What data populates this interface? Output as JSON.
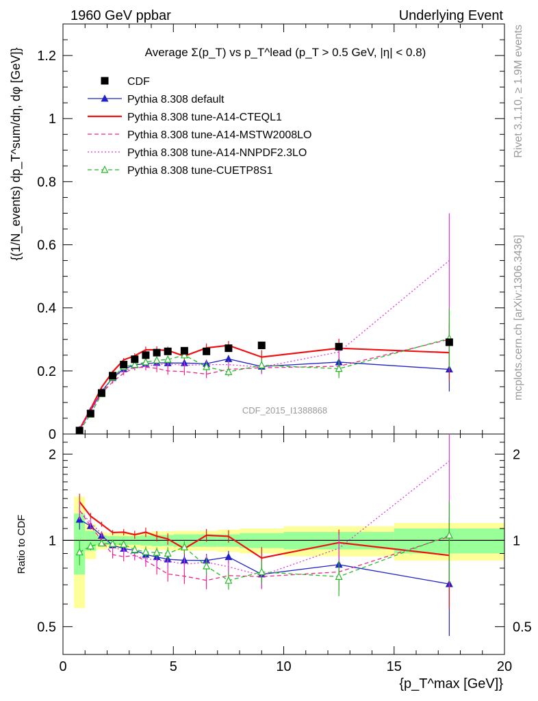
{
  "header": {
    "left": "1960 GeV ppbar",
    "right": "Underlying Event"
  },
  "side_labels": {
    "rivet": "Rivet 3.1.10, ≥ 1.9M events",
    "mcplots": "mcplots.cern.ch [arXiv:1306.3436]"
  },
  "chart_data": {
    "type": "line",
    "title": "Average Σ(p_T) vs p_T^lead (p_T > 0.5 GeV, |η| < 0.8)",
    "watermark": "CDF_2015_I1388868",
    "xlabel": "{p_T^max [GeV]}",
    "ylabel": "{(1/N_events) dp_T^sum/dη, dφ [GeV]}",
    "ratio_ylabel": "Ratio to CDF",
    "xlim": [
      0,
      20
    ],
    "ylim": [
      0,
      1.3
    ],
    "ratio_ylim": [
      0.4,
      2.35
    ],
    "ratio_scale": "log",
    "x_ticks": [
      0,
      5,
      10,
      15,
      20
    ],
    "y_ticks": [
      0,
      0.2,
      0.4,
      0.6,
      0.8,
      1,
      1.2
    ],
    "y_tick_labels": [
      "0",
      "0.2",
      "0.4",
      "0.6",
      "0.8",
      "1",
      "1.2"
    ],
    "ratio_ticks": [
      0.5,
      1,
      2
    ],
    "ratio_tick_labels": [
      "0.5",
      "1",
      "2"
    ],
    "legend_position": "top-left",
    "x_bin_edges": [
      0.5,
      1,
      1.5,
      2,
      2.5,
      3,
      3.5,
      4,
      4.5,
      5,
      6,
      7,
      8,
      10,
      15,
      20
    ],
    "x": [
      0.75,
      1.25,
      1.75,
      2.25,
      2.75,
      3.25,
      3.75,
      4.25,
      4.75,
      5.5,
      6.5,
      7.5,
      9,
      12.5,
      17.5
    ],
    "data": {
      "name": "CDF",
      "color": "#000000",
      "values": [
        0.011,
        0.065,
        0.13,
        0.185,
        0.22,
        0.237,
        0.25,
        0.258,
        0.262,
        0.264,
        0.262,
        0.272,
        0.281,
        0.277,
        0.291
      ],
      "band_yellow": [
        0.42,
        0.14,
        0.07,
        0.06,
        0.06,
        0.06,
        0.07,
        0.075,
        0.075,
        0.08,
        0.08,
        0.09,
        0.1,
        0.12,
        0.15
      ],
      "band_green": [
        0.24,
        0.08,
        0.04,
        0.035,
        0.035,
        0.035,
        0.04,
        0.045,
        0.045,
        0.05,
        0.05,
        0.05,
        0.06,
        0.07,
        0.1
      ]
    },
    "series": [
      {
        "name": "Pythia 8.308 default",
        "color": "#1f22c8",
        "style": "solid",
        "marker": "triangle",
        "values": [
          0.013,
          0.073,
          0.135,
          0.178,
          0.206,
          0.219,
          0.223,
          0.226,
          0.225,
          0.225,
          0.223,
          0.238,
          0.214,
          0.228,
          0.205
        ],
        "errors": [
          0.001,
          0.002,
          0.003,
          0.004,
          0.006,
          0.008,
          0.01,
          0.01,
          0.012,
          0.01,
          0.012,
          0.012,
          0.013,
          0.015,
          0.07
        ]
      },
      {
        "name": "Pythia 8.308 tune-A14-CTEQL1",
        "color": "#ee1111",
        "style": "solid",
        "marker": "none",
        "values": [
          0.015,
          0.079,
          0.148,
          0.197,
          0.235,
          0.248,
          0.267,
          0.267,
          0.265,
          0.247,
          0.273,
          0.281,
          0.244,
          0.272,
          0.258
        ],
        "errors": [
          0.001,
          0.002,
          0.003,
          0.004,
          0.006,
          0.008,
          0.01,
          0.011,
          0.012,
          0.012,
          0.014,
          0.014,
          0.022,
          0.03,
          0.09
        ]
      },
      {
        "name": "Pythia 8.308 tune-A14-MSTW2008LO",
        "color": "#ee2288",
        "style": "dashed",
        "marker": "none",
        "values": [
          0.014,
          0.073,
          0.13,
          0.165,
          0.193,
          0.21,
          0.212,
          0.208,
          0.2,
          0.198,
          0.19,
          0.205,
          0.21,
          0.215,
          0.3
        ],
        "errors": [
          0.001,
          0.002,
          0.003,
          0.005,
          0.007,
          0.008,
          0.01,
          0.012,
          0.012,
          0.012,
          0.013,
          0.013,
          0.02,
          0.03,
          0.1
        ]
      },
      {
        "name": "Pythia 8.308 tune-A14-NNPDF2.3LO",
        "color": "#dd33dd",
        "style": "dotted",
        "marker": "none",
        "values": [
          0.014,
          0.075,
          0.137,
          0.175,
          0.203,
          0.21,
          0.216,
          0.22,
          0.222,
          0.218,
          0.22,
          0.22,
          0.212,
          0.26,
          0.55
        ],
        "errors": [
          0.001,
          0.002,
          0.003,
          0.005,
          0.007,
          0.008,
          0.01,
          0.012,
          0.012,
          0.012,
          0.013,
          0.013,
          0.02,
          0.03,
          0.15
        ]
      },
      {
        "name": "Pythia 8.308 tune-CUETP8S1",
        "color": "#22bb22",
        "style": "dashed",
        "marker": "open-triangle",
        "values": [
          0.01,
          0.062,
          0.127,
          0.18,
          0.213,
          0.22,
          0.228,
          0.234,
          0.236,
          0.25,
          0.213,
          0.197,
          0.218,
          0.207,
          0.303
        ],
        "errors": [
          0.001,
          0.002,
          0.003,
          0.004,
          0.006,
          0.008,
          0.01,
          0.01,
          0.012,
          0.012,
          0.014,
          0.014,
          0.02,
          0.03,
          0.095
        ]
      }
    ]
  }
}
